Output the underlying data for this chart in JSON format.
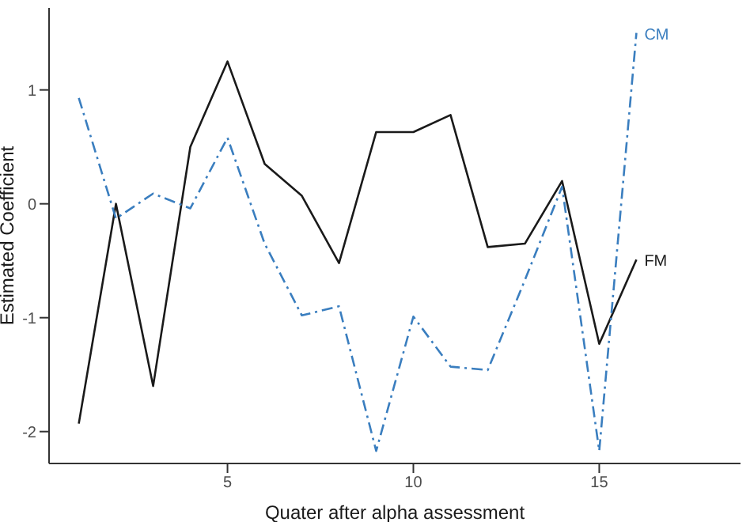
{
  "chart_data": {
    "type": "line",
    "xlabel": "Quater after alpha assessment",
    "ylabel": "Estimated Coefficient",
    "x": [
      1,
      2,
      3,
      4,
      5,
      6,
      7,
      8,
      9,
      10,
      11,
      12,
      13,
      14,
      15,
      16
    ],
    "series": [
      {
        "name": "FM",
        "color": "#1a1a1a",
        "line_style": "solid",
        "values": [
          -1.93,
          0.0,
          -1.6,
          0.5,
          1.25,
          0.35,
          0.07,
          -0.52,
          0.63,
          0.63,
          0.78,
          -0.38,
          -0.35,
          0.2,
          -1.23,
          -0.49
        ]
      },
      {
        "name": "CM",
        "color": "#3a7ebf",
        "line_style": "dashed",
        "values": [
          0.93,
          -0.13,
          0.09,
          -0.04,
          0.58,
          -0.35,
          -0.98,
          -0.9,
          -2.17,
          -0.99,
          -1.43,
          -1.46,
          -0.67,
          0.15,
          -2.17,
          1.5
        ]
      }
    ],
    "xlim": [
      0.2,
      18.8
    ],
    "xticks": [
      5,
      10,
      15
    ],
    "ylim": [
      -2.28,
      1.72
    ],
    "yticks": [
      -2,
      -1,
      0,
      1
    ],
    "grid": false,
    "legend": false,
    "marker": "none"
  }
}
